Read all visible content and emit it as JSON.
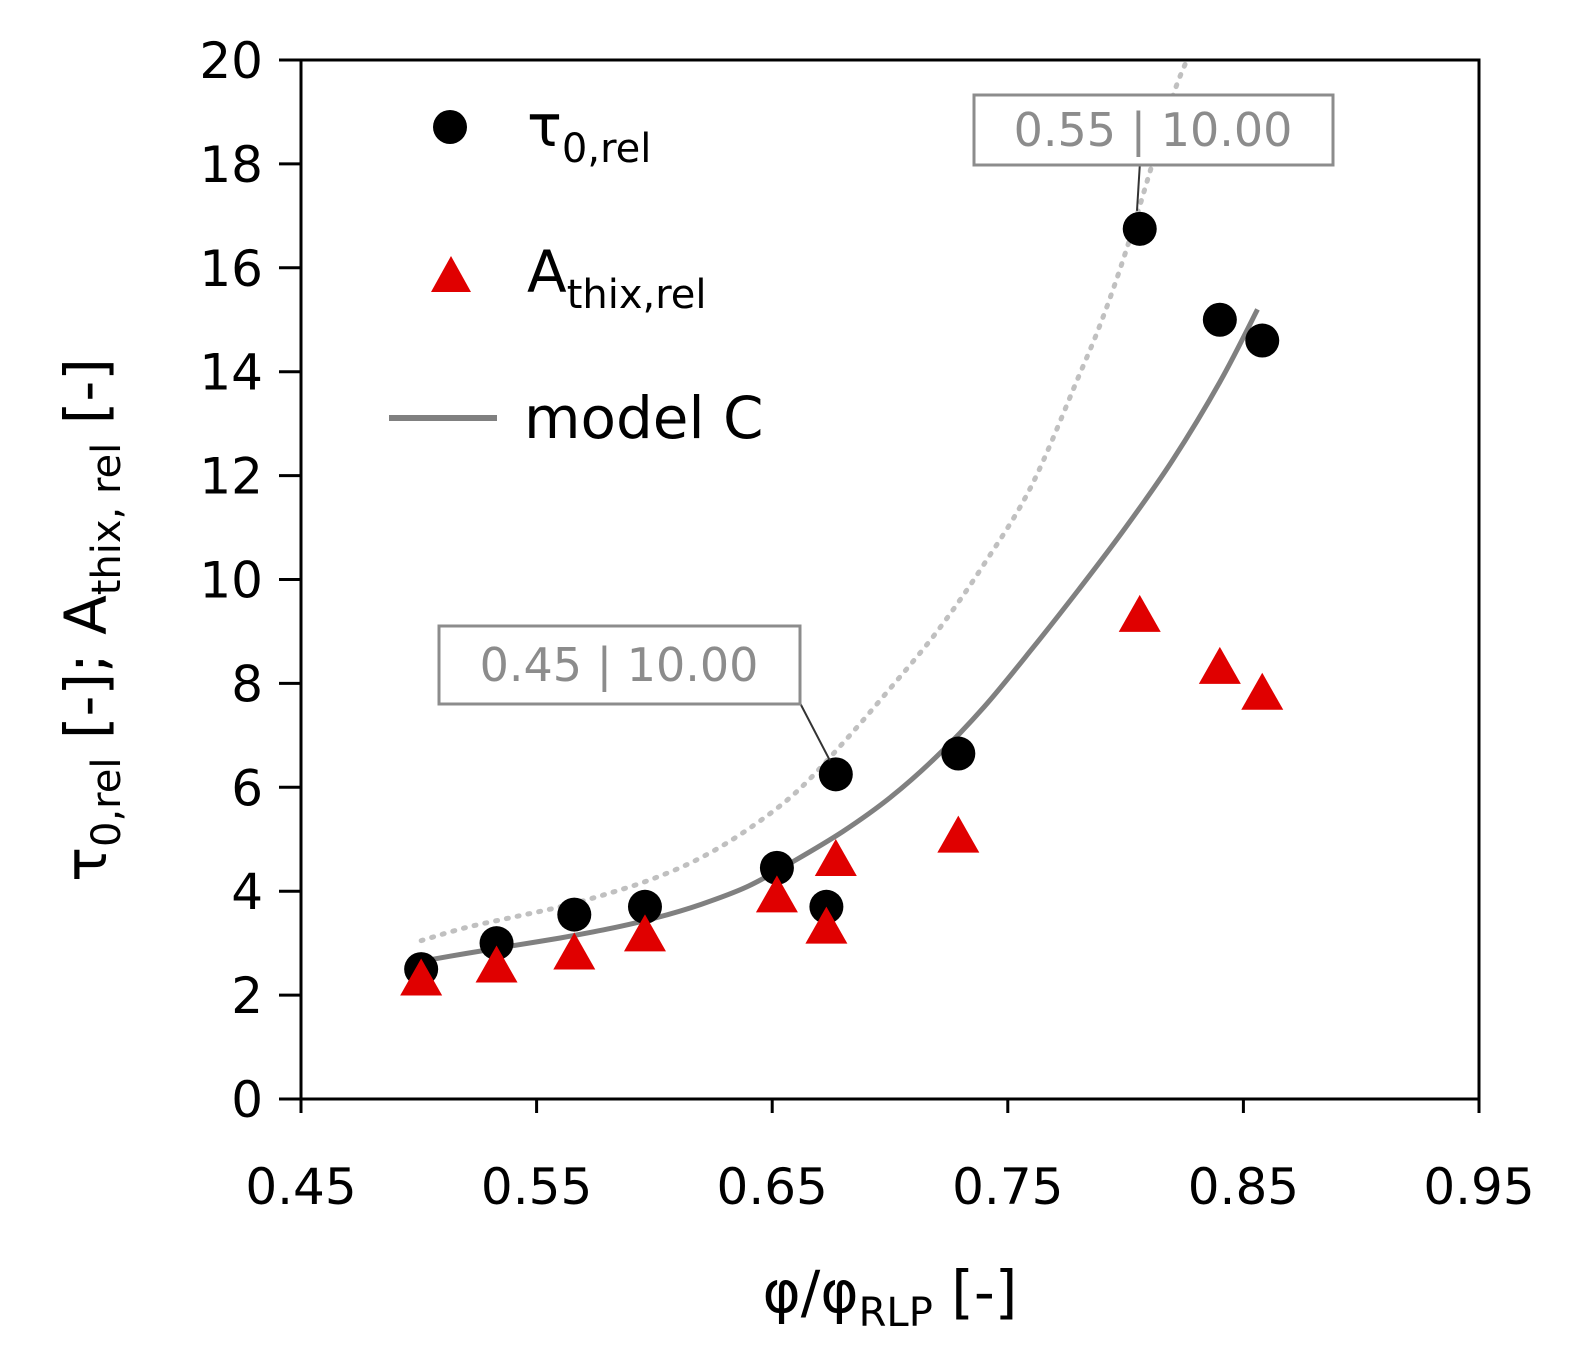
{
  "chart_data": {
    "type": "scatter",
    "xlabel": {
      "main": "φ/φ",
      "sub": "RLP",
      "suffix": " [-]"
    },
    "ylabel": {
      "p1": "τ",
      "s1": "0,rel",
      "p2": " [-]; A",
      "s2": "thix, rel",
      "p3": " [-]"
    },
    "xlim": [
      0.45,
      0.95
    ],
    "ylim": [
      0,
      20
    ],
    "xticks": [
      0.45,
      0.55,
      0.65,
      0.75,
      0.85,
      0.95
    ],
    "xtick_labels": [
      "0.45",
      "0.55",
      "0.65",
      "0.75",
      "0.85",
      "0.95"
    ],
    "yticks": [
      0,
      2,
      4,
      6,
      8,
      10,
      12,
      14,
      16,
      18,
      20
    ],
    "ytick_labels": [
      "0",
      "2",
      "4",
      "6",
      "8",
      "10",
      "12",
      "14",
      "16",
      "18",
      "20"
    ],
    "series": [
      {
        "name": "tau_0_rel",
        "legend": {
          "main": "τ",
          "sub": "0,rel"
        },
        "marker": "circle",
        "color": "#000000",
        "x": [
          0.501,
          0.533,
          0.566,
          0.596,
          0.652,
          0.673,
          0.677,
          0.729,
          0.806,
          0.84,
          0.858
        ],
        "y": [
          2.5,
          3.0,
          3.55,
          3.7,
          4.45,
          3.7,
          6.25,
          6.65,
          16.75,
          15.0,
          14.6
        ]
      },
      {
        "name": "A_thix_rel",
        "legend": {
          "main": "A",
          "sub": "thix,rel"
        },
        "marker": "triangle",
        "color": "#e00000",
        "x": [
          0.501,
          0.533,
          0.566,
          0.596,
          0.652,
          0.673,
          0.677,
          0.729,
          0.806,
          0.84,
          0.858
        ],
        "y": [
          2.3,
          2.55,
          2.8,
          3.15,
          3.9,
          3.3,
          4.6,
          5.05,
          9.3,
          8.3,
          7.8
        ]
      },
      {
        "name": "model C",
        "legend": {
          "main": "model C"
        },
        "marker": "line",
        "color": "#808080",
        "x": [
          0.501,
          0.52,
          0.54,
          0.56,
          0.58,
          0.6,
          0.62,
          0.64,
          0.66,
          0.68,
          0.7,
          0.72,
          0.74,
          0.76,
          0.78,
          0.8,
          0.82,
          0.84,
          0.856
        ],
        "y": [
          2.65,
          2.8,
          2.95,
          3.1,
          3.27,
          3.48,
          3.75,
          4.1,
          4.6,
          5.15,
          5.8,
          6.6,
          7.55,
          8.65,
          9.8,
          11.0,
          12.3,
          13.8,
          15.2
        ]
      },
      {
        "name": "model C dotted",
        "marker": "dotted",
        "color": "#c0c0c0",
        "x": [
          0.501,
          0.52,
          0.54,
          0.56,
          0.58,
          0.6,
          0.62,
          0.64,
          0.66,
          0.68,
          0.7,
          0.72,
          0.74,
          0.76,
          0.78,
          0.79,
          0.8,
          0.81,
          0.82,
          0.826
        ],
        "y": [
          3.05,
          3.3,
          3.5,
          3.7,
          3.95,
          4.25,
          4.65,
          5.2,
          5.9,
          6.85,
          7.9,
          9.0,
          10.3,
          11.8,
          13.9,
          15.0,
          16.3,
          17.8,
          19.3,
          20.0
        ]
      }
    ],
    "annotations": [
      {
        "name": "callout-upper",
        "text": "0.55 | 10.00",
        "target_x": 0.806,
        "target_y": 16.75
      },
      {
        "name": "callout-lower",
        "text": "0.45 | 10.00",
        "target_x": 0.677,
        "target_y": 6.25
      }
    ]
  }
}
